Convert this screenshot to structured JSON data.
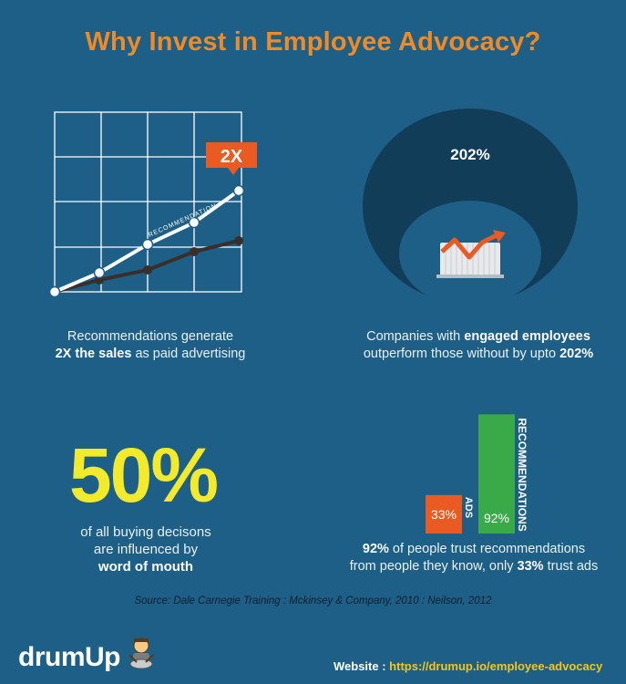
{
  "title": "Why Invest in Employee Advocacy?",
  "panel1": {
    "badge": "2X",
    "line_label": "RECOMMENDATION",
    "caption_line1": "Recommendations generate",
    "caption_bold": "2X the sales",
    "caption_rest": " as paid advertising"
  },
  "panel2": {
    "value": "202%",
    "caption_line1_pre": "Companies with ",
    "caption_line1_bold": "engaged employees",
    "caption_line2_pre": "outperform those without by upto ",
    "caption_line2_bold": "202%"
  },
  "panel3": {
    "big": "50%",
    "caption_line1": "of all buying decisons",
    "caption_line2": "are influenced by",
    "caption_bold": "word of mouth"
  },
  "panel4": {
    "bars": [
      {
        "label": "ADS",
        "value_text": "33%",
        "value": 33,
        "color": "#ea5b24"
      },
      {
        "label": "RECOMMENDATIONS",
        "value_text": "92%",
        "value": 92,
        "color": "#3aaa49"
      }
    ],
    "caption_bold1": "92%",
    "caption_line1_rest": " of people trust recommendations",
    "caption_line2_pre": "from people they know, only ",
    "caption_bold2": "33%",
    "caption_line2_rest": " trust ads"
  },
  "source": "Source: Dale Carnegie Training : Mckinsey & Company, 2010 : Neilson, 2012",
  "footer": {
    "logo": "drumUp",
    "website_label": "Website : ",
    "website_url": "https://drumup.io/employee-advocacy"
  },
  "colors": {
    "background": "#1d5f86",
    "accent_orange": "#f08a24",
    "accent_yellow": "#f2ea2b",
    "dark_ring": "#123d59",
    "green": "#3aaa49",
    "red_orange": "#ea5b24"
  }
}
